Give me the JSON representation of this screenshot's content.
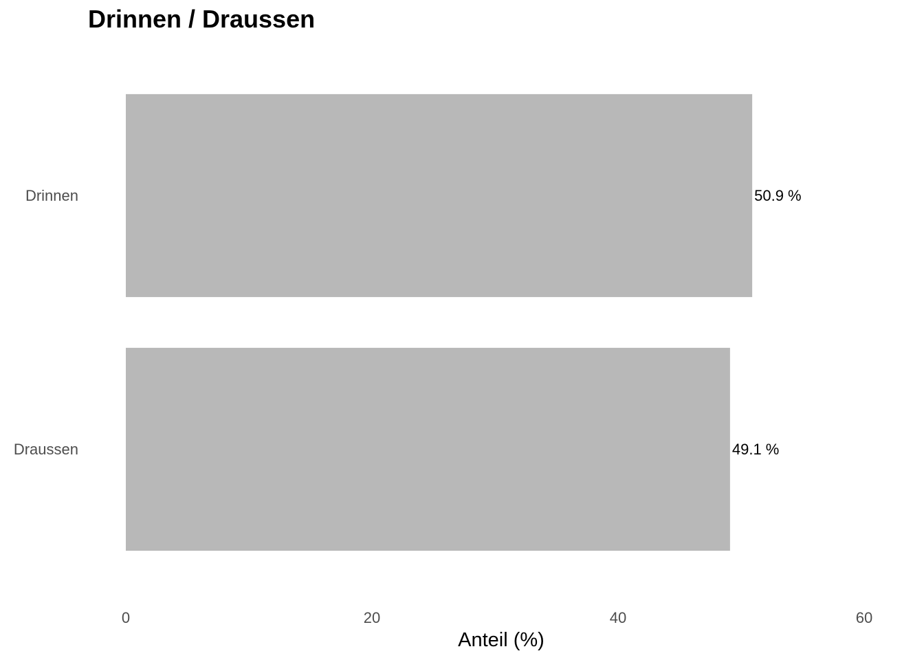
{
  "chart_data": {
    "type": "bar",
    "orientation": "horizontal",
    "title": "Drinnen / Draussen",
    "xlabel": "Anteil (%)",
    "ylabel": "",
    "categories": [
      "Drinnen",
      "Draussen"
    ],
    "values": [
      50.9,
      49.1
    ],
    "value_labels": [
      "50.9 %",
      "49.1 %"
    ],
    "xlim": [
      0,
      60
    ],
    "x_ticks": [
      0,
      20,
      40,
      60
    ],
    "x_tick_labels": [
      "0",
      "20",
      "40",
      "60"
    ],
    "grid": false,
    "legend": "none",
    "bar_color": "#b8b8b8"
  }
}
